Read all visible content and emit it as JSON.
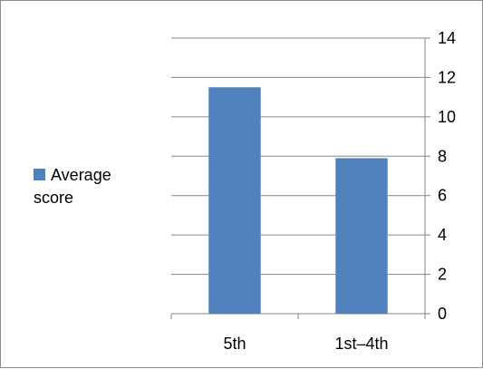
{
  "chart_data": {
    "type": "bar",
    "categories": [
      "5th",
      "1st–4th"
    ],
    "series": [
      {
        "name": "Average score",
        "values": [
          11.5,
          7.9
        ],
        "color": "#4F81BD"
      }
    ],
    "ylim": [
      0,
      14
    ],
    "yticks": [
      0,
      2,
      4,
      6,
      8,
      10,
      12,
      14
    ],
    "y_axis_side": "right",
    "grid": true,
    "legend_position": "left"
  }
}
